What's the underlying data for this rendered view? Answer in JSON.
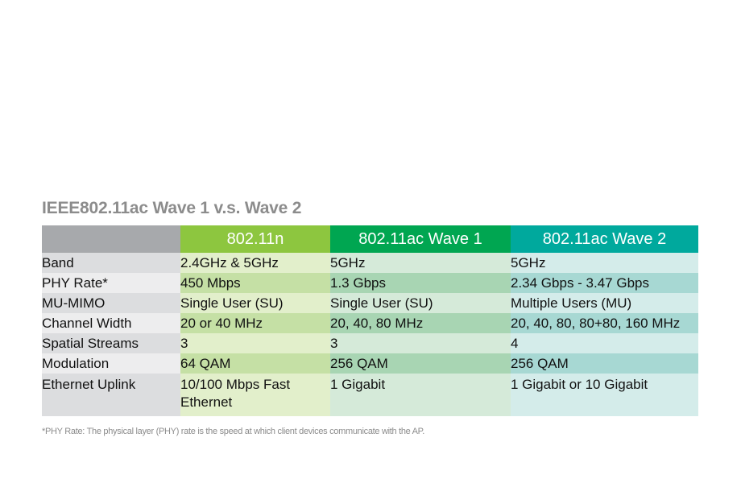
{
  "title": "IEEE802.11ac Wave 1 v.s. Wave 2",
  "headers": [
    "",
    "802.11n",
    "802.11ac Wave 1",
    "802.11ac Wave 2"
  ],
  "rows": [
    {
      "label": "Band",
      "values": [
        "2.4GHz & 5GHz",
        "5GHz",
        "5GHz"
      ]
    },
    {
      "label": "PHY Rate*",
      "values": [
        "450 Mbps",
        "1.3 Gbps",
        "2.34 Gbps - 3.47 Gbps"
      ]
    },
    {
      "label": "MU-MIMO",
      "values": [
        "Single User (SU)",
        "Single User (SU)",
        "Multiple Users (MU)"
      ]
    },
    {
      "label": "Channel Width",
      "values": [
        "20 or 40 MHz",
        "20, 40, 80 MHz",
        "20, 40, 80, 80+80, 160 MHz"
      ]
    },
    {
      "label": "Spatial Streams",
      "values": [
        "3",
        "3",
        "4"
      ]
    },
    {
      "label": "Modulation",
      "values": [
        "64 QAM",
        "256 QAM",
        "256 QAM"
      ]
    },
    {
      "label": "Ethernet Uplink",
      "values": [
        "10/100 Mbps Fast Ethernet",
        "1 Gigabit",
        "1 Gigabit or 10 Gigabit"
      ]
    }
  ],
  "footnote": "*PHY Rate: The physical layer (PHY) rate is the speed at which client devices communicate with the AP.",
  "colors": {
    "header_80211n": "#8dc63f",
    "header_wave1": "#00a651",
    "header_wave2": "#00a99d",
    "header_blank": "#a7a9ac"
  }
}
